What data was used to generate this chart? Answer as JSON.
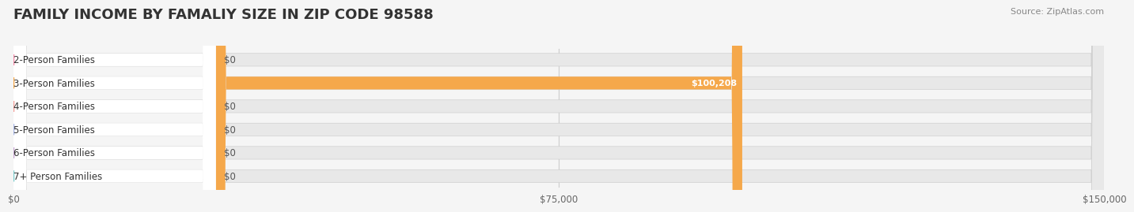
{
  "title": "FAMILY INCOME BY FAMALIY SIZE IN ZIP CODE 98588",
  "source": "Source: ZipAtlas.com",
  "categories": [
    "2-Person Families",
    "3-Person Families",
    "4-Person Families",
    "5-Person Families",
    "6-Person Families",
    "7+ Person Families"
  ],
  "values": [
    0,
    100208,
    0,
    0,
    0,
    0
  ],
  "bar_colors": [
    "#f48caa",
    "#f5a84b",
    "#f4a09a",
    "#aab8e8",
    "#c9a8d4",
    "#7ecfcf"
  ],
  "label_colors": [
    "#f48caa",
    "#f5a84b",
    "#f4a09a",
    "#aab8e8",
    "#c9a8d4",
    "#7ecfcf"
  ],
  "xlim": [
    0,
    150000
  ],
  "xticks": [
    0,
    75000,
    150000
  ],
  "xtick_labels": [
    "$0",
    "$75,000",
    "$150,000"
  ],
  "title_fontsize": 13,
  "source_fontsize": 8,
  "bar_height": 0.55,
  "background_color": "#f5f5f5",
  "bar_bg_color": "#e8e8e8",
  "value_label_3person": "$100,208"
}
